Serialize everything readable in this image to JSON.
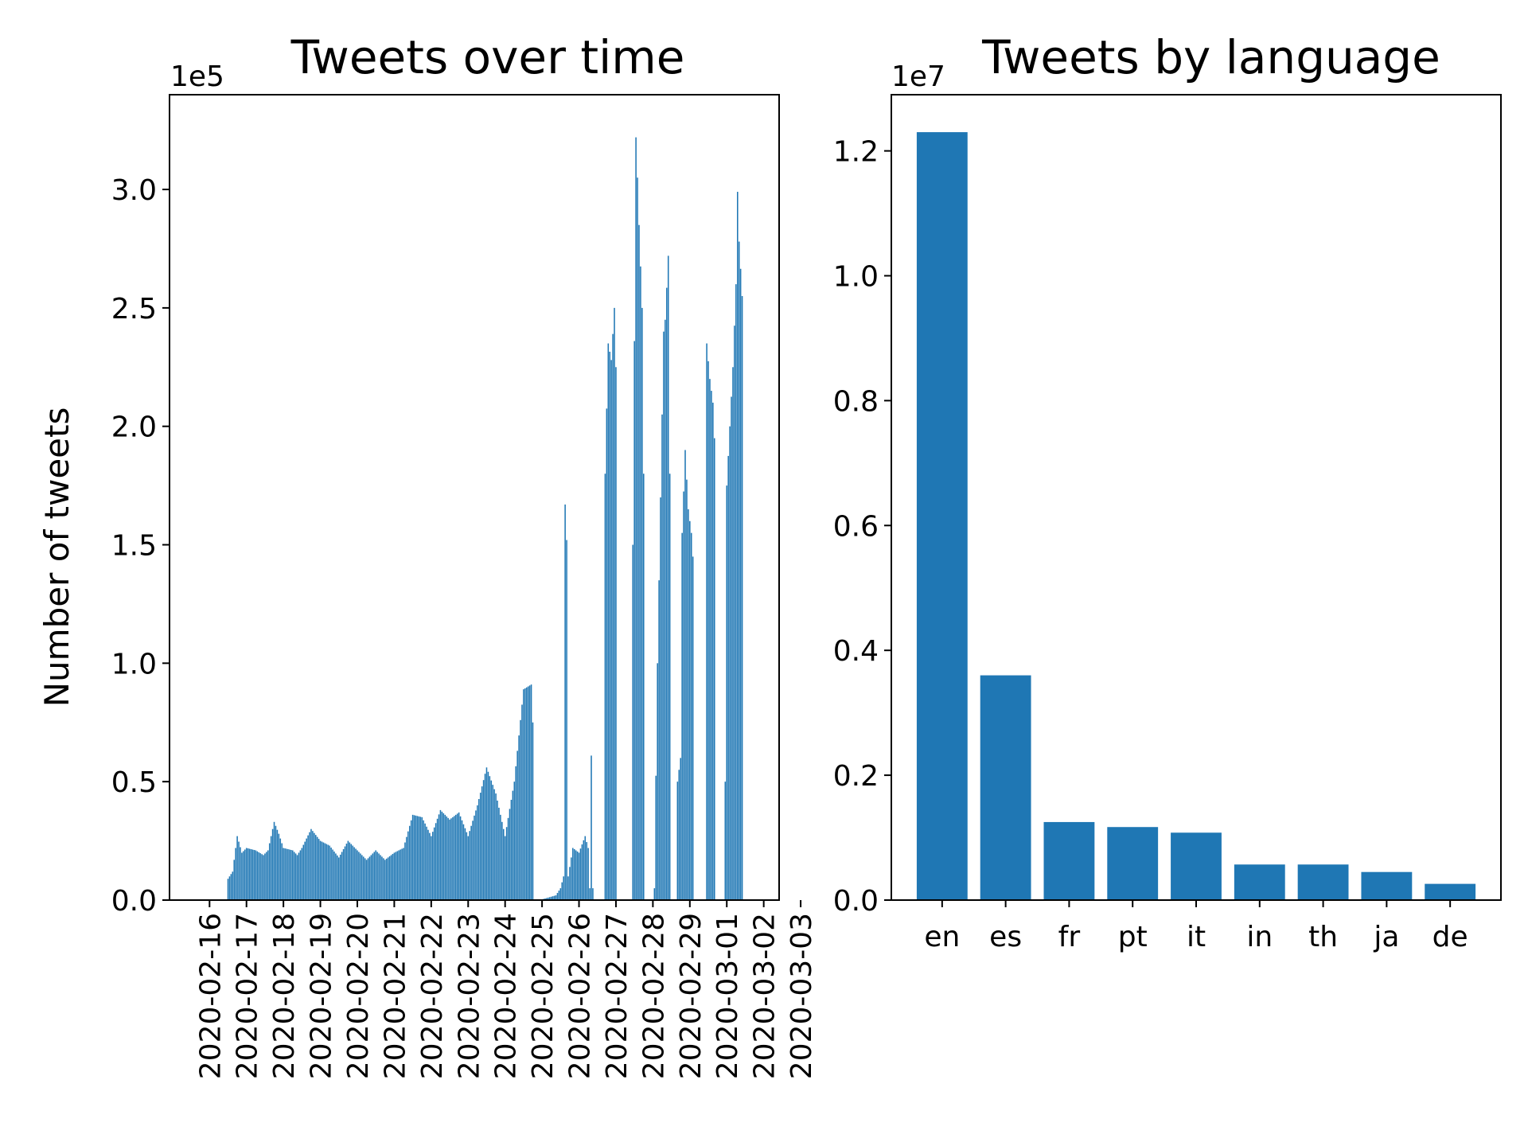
{
  "chart_data": [
    {
      "type": "bar",
      "title": "Tweets over time",
      "xlabel": "",
      "ylabel": "Number of tweets",
      "y_multiplier": "1e5",
      "ylim": [
        0,
        3.4
      ],
      "ytick_labels": [
        "0.0",
        "0.5",
        "1.0",
        "1.5",
        "2.0",
        "2.5",
        "3.0"
      ],
      "ytick_values": [
        0,
        0.5,
        1.0,
        1.5,
        2.0,
        2.5,
        3.0
      ],
      "xtick_labels": [
        "2020-02-16",
        "2020-02-17",
        "2020-02-18",
        "2020-02-19",
        "2020-02-20",
        "2020-02-21",
        "2020-02-22",
        "2020-02-23",
        "2020-02-24",
        "2020-02-25",
        "2020-02-26",
        "2020-02-27",
        "2020-02-28",
        "2020-02-29",
        "2020-03-01",
        "2020-03-02",
        "2020-03-03"
      ],
      "granularity": "hourly",
      "start": "2020-02-16",
      "hourly_keypoints": [
        [
          0,
          0
        ],
        [
          11,
          0
        ],
        [
          12,
          0.09
        ],
        [
          15,
          0.12
        ],
        [
          18,
          0.27
        ],
        [
          21,
          0.2
        ],
        [
          24,
          0.22
        ],
        [
          30,
          0.21
        ],
        [
          35,
          0.19
        ],
        [
          38,
          0.21
        ],
        [
          42,
          0.33
        ],
        [
          45,
          0.28
        ],
        [
          48,
          0.22
        ],
        [
          54,
          0.21
        ],
        [
          57,
          0.19
        ],
        [
          60,
          0.22
        ],
        [
          66,
          0.3
        ],
        [
          72,
          0.25
        ],
        [
          78,
          0.23
        ],
        [
          84,
          0.18
        ],
        [
          90,
          0.25
        ],
        [
          96,
          0.21
        ],
        [
          102,
          0.17
        ],
        [
          108,
          0.21
        ],
        [
          114,
          0.17
        ],
        [
          120,
          0.2
        ],
        [
          126,
          0.22
        ],
        [
          132,
          0.36
        ],
        [
          138,
          0.35
        ],
        [
          144,
          0.27
        ],
        [
          150,
          0.38
        ],
        [
          156,
          0.34
        ],
        [
          162,
          0.37
        ],
        [
          168,
          0.27
        ],
        [
          174,
          0.4
        ],
        [
          180,
          0.56
        ],
        [
          186,
          0.45
        ],
        [
          192,
          0.27
        ],
        [
          198,
          0.5
        ],
        [
          204,
          0.89
        ],
        [
          209,
          0.91
        ],
        [
          210,
          0.75
        ],
        [
          211,
          0
        ],
        [
          216,
          0
        ],
        [
          217,
          0.005
        ],
        [
          225,
          0.02
        ],
        [
          228,
          0.05
        ],
        [
          230,
          0.1
        ],
        [
          231,
          1.67
        ],
        [
          232,
          1.52
        ],
        [
          233,
          0.1
        ],
        [
          236,
          0.22
        ],
        [
          240,
          0.2
        ],
        [
          244,
          0.27
        ],
        [
          246,
          0.22
        ],
        [
          247,
          0.05
        ],
        [
          248,
          0.61
        ],
        [
          249,
          0.05
        ],
        [
          250,
          0
        ],
        [
          256,
          0
        ],
        [
          257,
          1.8
        ],
        [
          259,
          2.35
        ],
        [
          261,
          2.28
        ],
        [
          263,
          2.5
        ],
        [
          264,
          2.25
        ],
        [
          265,
          0
        ],
        [
          274,
          0
        ],
        [
          275,
          1.5
        ],
        [
          277,
          3.22
        ],
        [
          278,
          3.05
        ],
        [
          279,
          2.85
        ],
        [
          281,
          2.5
        ],
        [
          282,
          1.8
        ],
        [
          283,
          0
        ],
        [
          288,
          0
        ],
        [
          289,
          0.05
        ],
        [
          291,
          1.0
        ],
        [
          293,
          1.7
        ],
        [
          295,
          2.4
        ],
        [
          296,
          2.45
        ],
        [
          298,
          2.72
        ],
        [
          299,
          1.8
        ],
        [
          300,
          0
        ],
        [
          303,
          0
        ],
        [
          304,
          0.5
        ],
        [
          306,
          0.6
        ],
        [
          307,
          1.55
        ],
        [
          309,
          1.9
        ],
        [
          311,
          1.65
        ],
        [
          313,
          1.55
        ],
        [
          314,
          1.45
        ],
        [
          315,
          0
        ],
        [
          322,
          0
        ],
        [
          323,
          2.35
        ],
        [
          325,
          2.2
        ],
        [
          327,
          2.1
        ],
        [
          328,
          1.95
        ],
        [
          329,
          0
        ],
        [
          334,
          0
        ],
        [
          335,
          0.5
        ],
        [
          336,
          1.75
        ],
        [
          338,
          2.0
        ],
        [
          340,
          2.25
        ],
        [
          342,
          2.6
        ],
        [
          343,
          2.99
        ],
        [
          344,
          2.78
        ],
        [
          346,
          2.55
        ],
        [
          347,
          0
        ]
      ]
    },
    {
      "type": "bar",
      "title": "Tweets by language",
      "xlabel": "",
      "ylabel": "",
      "y_multiplier": "1e7",
      "ylim": [
        0,
        1.29
      ],
      "ytick_labels": [
        "0.0",
        "0.2",
        "0.4",
        "0.6",
        "0.8",
        "1.0",
        "1.2"
      ],
      "ytick_values": [
        0,
        0.2,
        0.4,
        0.6,
        0.8,
        1.0,
        1.2
      ],
      "categories": [
        "en",
        "es",
        "fr",
        "pt",
        "it",
        "in",
        "th",
        "ja",
        "de"
      ],
      "values": [
        1.23,
        0.36,
        0.125,
        0.117,
        0.108,
        0.057,
        0.057,
        0.045,
        0.026
      ]
    }
  ]
}
